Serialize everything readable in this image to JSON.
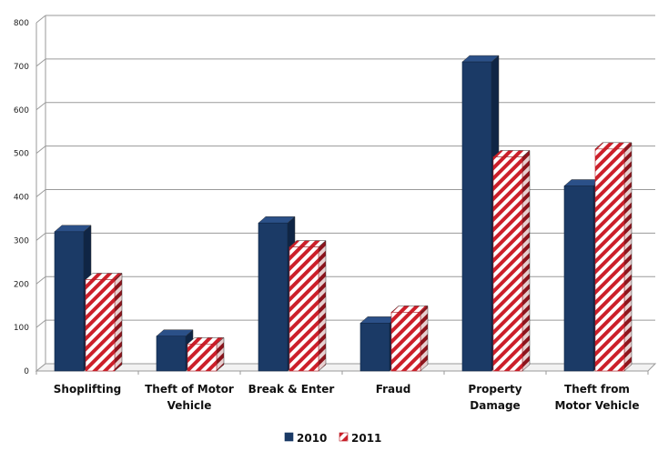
{
  "chart_data": {
    "type": "bar",
    "title": "",
    "xlabel": "",
    "ylabel": "",
    "ylim": [
      0,
      800
    ],
    "yticks": [
      0,
      100,
      200,
      300,
      400,
      500,
      600,
      700,
      800
    ],
    "grid": true,
    "legend_position": "bottom",
    "categories": [
      [
        "Shoplifting"
      ],
      [
        "Theft of Motor",
        "Vehicle"
      ],
      [
        "Break & Enter"
      ],
      [
        "Fraud"
      ],
      [
        "Property",
        "Damage"
      ],
      [
        "Theft from",
        "Motor Vehicle"
      ]
    ],
    "series": [
      {
        "name": "2010",
        "values": [
          320,
          80,
          340,
          110,
          710,
          425
        ],
        "color": "#1b3a66",
        "pattern": "solid"
      },
      {
        "name": "2011",
        "values": [
          210,
          62,
          285,
          135,
          492,
          510
        ],
        "color": "#cc1f2a",
        "pattern": "diagonal-stripes"
      }
    ]
  }
}
